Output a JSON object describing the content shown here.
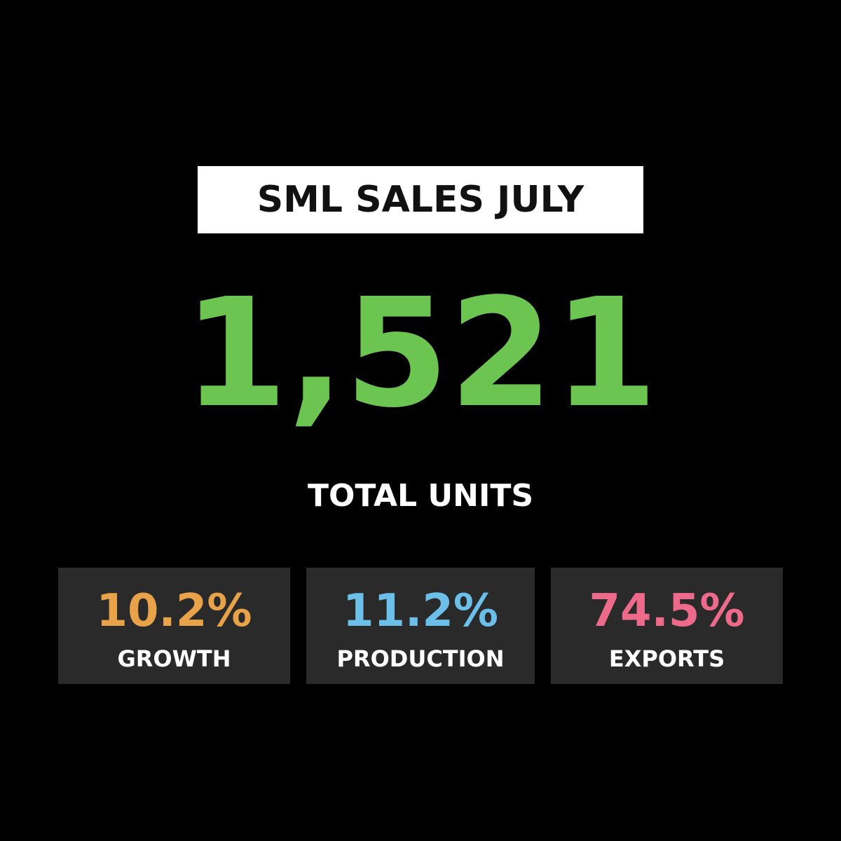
{
  "title": "SML SALES JULY",
  "headline": {
    "value": "1,521",
    "label": "TOTAL UNITS",
    "color": "#6cc551"
  },
  "stats": [
    {
      "value": "10.2%",
      "label": "GROWTH",
      "color": "#e8a24a"
    },
    {
      "value": "11.2%",
      "label": "PRODUCTION",
      "color": "#6bbfe8"
    },
    {
      "value": "74.5%",
      "label": "EXPORTS",
      "color": "#ee6a8a"
    }
  ],
  "colors": {
    "background": "#000000",
    "card_background": "#2a2a2a",
    "title_background": "#ffffff",
    "title_text": "#111111",
    "label_text": "#ffffff"
  }
}
